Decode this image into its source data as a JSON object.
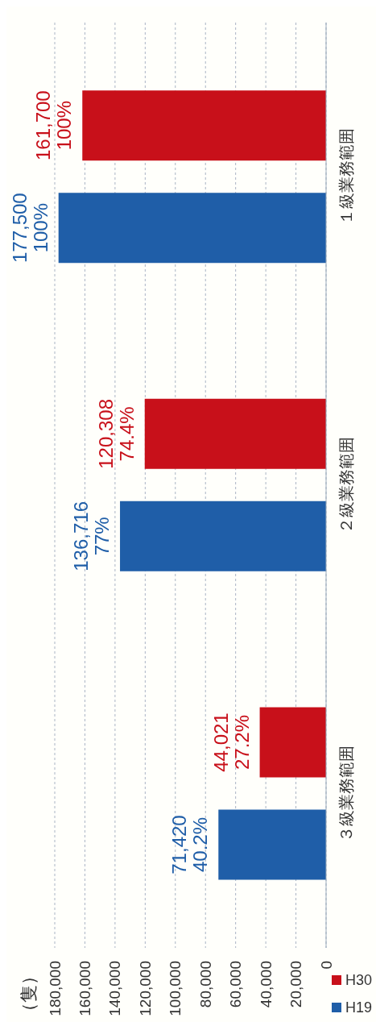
{
  "chart_data": {
    "type": "bar",
    "orientation": "horizontal",
    "annotations": [
      "（隻）"
    ],
    "categories": [
      "１級業務範囲",
      "２級業務範囲",
      "３級業務範囲"
    ],
    "series": [
      {
        "name": "H19",
        "color": "#1f5ea8",
        "values": [
          177500,
          136716,
          71420
        ],
        "value_labels": [
          "177,500\n100%",
          "136,716\n77%",
          "71,420\n40.2%"
        ]
      },
      {
        "name": "H30",
        "color": "#c8101a",
        "values": [
          161700,
          120308,
          44021
        ],
        "value_labels": [
          "161,700\n100%",
          "120,308\n74.4%",
          "44,021\n27.2%"
        ]
      }
    ],
    "xlim": [
      180000,
      0
    ],
    "xticks": [
      0,
      {
        "value": 20000,
        "label": "20,000"
      },
      {
        "value": 40000,
        "label": "40,000"
      },
      {
        "value": 60000,
        "label": "60,000"
      },
      {
        "value": 80000,
        "label": "80,000"
      },
      {
        "value": 100000,
        "label": "100,000"
      },
      {
        "value": 120000,
        "label": "120,000"
      },
      {
        "value": 140000,
        "label": "140,000"
      },
      {
        "value": 160000,
        "label": "160,000"
      },
      {
        "value": 180000,
        "label": "180,000"
      }
    ],
    "grid": "x",
    "legend": "bottom right"
  }
}
